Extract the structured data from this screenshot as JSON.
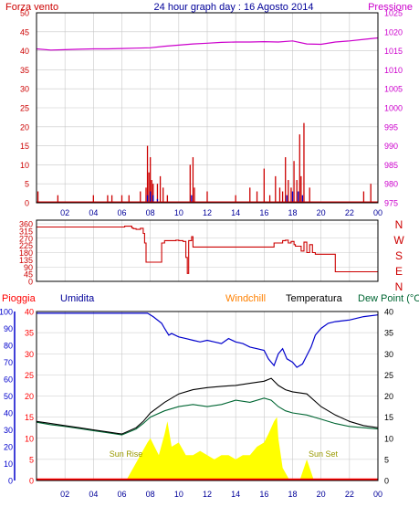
{
  "title": "24 hour graph day : 16 Agosto 2014",
  "colors": {
    "wind": "#cc0000",
    "gust": "#cc0000",
    "pressure": "#cc00cc",
    "humidity": "#0000cc",
    "rain": "#ff0000",
    "windchill": "#ff8000",
    "temperature": "#000000",
    "dewpoint": "#006633",
    "solar": "#ffff00",
    "direction": "#cc0000",
    "grid": "#c8c8c8",
    "border": "#000000"
  },
  "chart_data": [
    {
      "type": "line",
      "title": "24 hour graph day : 16 Agosto 2014",
      "left_label": "Forza vento",
      "right_label": "Pressione",
      "x_ticks": [
        "02",
        "04",
        "06",
        "08",
        "10",
        "12",
        "14",
        "16",
        "18",
        "20",
        "22",
        "00"
      ],
      "xlim": [
        0,
        24
      ],
      "left_ticks": [
        "50",
        "45",
        "40",
        "35",
        "30",
        "25",
        "20",
        "15",
        "10",
        "5",
        "0"
      ],
      "right_ticks": [
        "1025",
        "1020",
        "1015",
        "1010",
        "1005",
        "1000",
        "995",
        "990",
        "985",
        "980",
        "975"
      ],
      "ylim_left": [
        0,
        50
      ],
      "ylim_right": [
        975,
        1025
      ],
      "series": [
        {
          "kind": "pressure",
          "axis": "right",
          "x": [
            0,
            1,
            2,
            3,
            4,
            5,
            6,
            7,
            8,
            9,
            10,
            11,
            12,
            13,
            14,
            15,
            16,
            17,
            18,
            19,
            20,
            21,
            22,
            23,
            24
          ],
          "y": [
            1015.5,
            1015.2,
            1015.3,
            1015.4,
            1015.5,
            1015.5,
            1015.6,
            1015.7,
            1015.8,
            1016.2,
            1016.5,
            1016.8,
            1017.0,
            1017.2,
            1017.3,
            1017.3,
            1017.4,
            1017.3,
            1017.6,
            1016.8,
            1016.7,
            1017.3,
            1017.6,
            1018.0,
            1018.4
          ]
        },
        {
          "kind": "gust",
          "axis": "left",
          "x": [
            0.1,
            1.5,
            4.0,
            5.0,
            5.3,
            6.0,
            6.5,
            7.3,
            7.7,
            7.8,
            7.9,
            8.0,
            8.1,
            8.2,
            8.5,
            8.7,
            8.9,
            9.2,
            10.8,
            11.0,
            11.1,
            12.0,
            14.0,
            15.0,
            15.5,
            16.0,
            16.4,
            16.8,
            17.1,
            17.3,
            17.5,
            17.7,
            17.9,
            18.1,
            18.3,
            18.5,
            18.6,
            18.8,
            19.2,
            23.0,
            23.5
          ],
          "y": [
            3,
            2,
            2,
            2,
            2,
            2,
            2,
            3,
            4,
            15,
            8,
            12,
            6,
            5,
            5,
            7,
            4,
            2,
            10,
            12,
            4,
            3,
            2,
            4,
            3,
            9,
            2,
            7,
            4,
            3,
            12,
            6,
            4,
            11,
            6,
            18,
            7,
            21,
            4,
            3,
            5
          ]
        },
        {
          "kind": "wind",
          "axis": "left",
          "x": [
            7.8,
            8.0,
            8.2,
            8.5,
            10.9,
            17.6,
            18.0,
            18.4,
            18.7
          ],
          "y": [
            2,
            3,
            2,
            1,
            2,
            2,
            3,
            3,
            2
          ]
        }
      ]
    },
    {
      "type": "line",
      "left_label": "",
      "right_labels": [
        "N",
        "W",
        "S",
        "E",
        "N"
      ],
      "left_ticks": [
        "360",
        "315",
        "270",
        "225",
        "180",
        "135",
        "90",
        "45",
        "0"
      ],
      "ylim": [
        0,
        360
      ],
      "x_ticks": [],
      "xlim": [
        0,
        24
      ],
      "series": [
        {
          "kind": "direction",
          "x": [
            0,
            6.0,
            6.2,
            6.3,
            6.7,
            6.8,
            7.0,
            7.3,
            7.5,
            7.6,
            7.7,
            8.7,
            8.8,
            9.0,
            9.8,
            10.0,
            10.3,
            10.5,
            10.6,
            10.7,
            10.9,
            11.0,
            16.6,
            16.7,
            17.3,
            17.5,
            17.7,
            17.9,
            18.1,
            18.2,
            18.5,
            18.6,
            18.8,
            19.0,
            19.2,
            19.4,
            19.6,
            20.0,
            20.8,
            21.0,
            23.5,
            24.0
          ],
          "y": [
            340,
            340,
            345,
            345,
            335,
            330,
            325,
            332,
            300,
            240,
            120,
            120,
            240,
            255,
            258,
            255,
            250,
            150,
            50,
            255,
            280,
            215,
            215,
            240,
            255,
            258,
            240,
            250,
            230,
            220,
            220,
            190,
            245,
            180,
            230,
            180,
            170,
            170,
            170,
            60,
            60,
            60
          ]
        }
      ]
    },
    {
      "type": "line",
      "labels": [
        "Pioggia",
        "Umidita",
        "Windchill",
        "Temperatura",
        "Dew Point (°C"
      ],
      "left_ticks_rain": [
        "40",
        "35",
        "30",
        "25",
        "20",
        "15",
        "10",
        "5",
        "0"
      ],
      "left_ticks_humidity": [
        "100",
        "90",
        "80",
        "70",
        "60",
        "50",
        "40",
        "30",
        "20",
        "10",
        "0"
      ],
      "right_ticks": [
        "40",
        "35",
        "30",
        "25",
        "20",
        "15",
        "10",
        "5",
        "0"
      ],
      "x_ticks": [
        "02",
        "04",
        "06",
        "08",
        "10",
        "12",
        "14",
        "16",
        "18",
        "20",
        "22",
        "00"
      ],
      "xlim": [
        0,
        24
      ],
      "ylim_temp": [
        0,
        40
      ],
      "ylim_humidity": [
        0,
        100
      ],
      "annotations": [
        "Sun Rise",
        "Sun Set"
      ],
      "series": [
        {
          "name": "Umidita",
          "kind": "humidity",
          "x": [
            0,
            2,
            4,
            6,
            7.8,
            8.2,
            8.8,
            9.0,
            9.3,
            9.5,
            10,
            10.5,
            11,
            11.5,
            12,
            12.5,
            13,
            13.5,
            14,
            14.5,
            15,
            15.5,
            16,
            16.3,
            16.7,
            17.0,
            17.3,
            17.6,
            18.0,
            18.3,
            18.7,
            19.0,
            19.3,
            19.6,
            20.0,
            20.5,
            21,
            22,
            23,
            24
          ],
          "y": [
            99,
            99,
            99,
            99,
            99,
            97,
            93,
            90,
            86,
            87,
            85,
            84,
            83,
            82,
            83,
            82,
            81,
            84,
            82,
            81,
            79,
            78,
            77,
            72,
            68,
            75,
            78,
            72,
            70,
            67,
            69,
            74,
            79,
            86,
            90,
            93,
            94,
            95,
            97,
            98
          ]
        },
        {
          "name": "Temperatura",
          "kind": "temperature",
          "x": [
            0,
            1,
            2,
            3,
            4,
            5,
            6,
            7,
            7.5,
            8,
            9,
            10,
            11,
            12,
            13,
            14,
            15,
            16,
            16.5,
            17,
            17.5,
            18,
            19,
            20,
            21,
            22,
            23,
            24
          ],
          "y": [
            14,
            13.5,
            13,
            12.5,
            12,
            11.5,
            11,
            12.5,
            14,
            16,
            18.5,
            20.5,
            21.5,
            22,
            22.3,
            22.5,
            23,
            23.5,
            24.2,
            22.5,
            21.5,
            21,
            20.5,
            17.5,
            15.5,
            14,
            13,
            12.5
          ]
        },
        {
          "name": "Dew Point",
          "kind": "dewpoint",
          "x": [
            0,
            1,
            2,
            3,
            4,
            5,
            6,
            7,
            7.5,
            8,
            9,
            10,
            11,
            12,
            13,
            14,
            15,
            16,
            16.5,
            17,
            17.5,
            18,
            19,
            20,
            21,
            22,
            23,
            24
          ],
          "y": [
            13.8,
            13.2,
            12.8,
            12.3,
            11.8,
            11.3,
            10.8,
            12.2,
            13.5,
            15,
            16.5,
            17.5,
            18,
            17.5,
            18,
            19,
            18.5,
            19.5,
            19,
            17.5,
            16.5,
            16,
            15.5,
            14.5,
            13.5,
            12.8,
            12.5,
            12.2
          ]
        },
        {
          "name": "Solar",
          "kind": "solar",
          "x": [
            6.3,
            6.8,
            7.3,
            7.8,
            8.0,
            8.3,
            8.6,
            9.0,
            9.2,
            9.5,
            10.0,
            10.5,
            11.0,
            11.5,
            12.0,
            12.5,
            13.0,
            13.5,
            14.0,
            14.5,
            15.0,
            15.5,
            16.0,
            16.3,
            16.7,
            16.9,
            17.0,
            17.3,
            17.8,
            18.5,
            18.7,
            19.0,
            19.3,
            19.5
          ],
          "y": [
            0,
            3,
            6,
            9,
            10,
            8,
            6,
            11,
            14,
            8,
            9,
            6,
            6,
            7,
            6,
            5,
            6,
            6,
            5,
            6,
            6,
            8,
            9,
            11,
            14,
            15,
            10,
            3,
            0,
            0,
            2,
            5,
            2,
            0
          ]
        },
        {
          "name": "Pioggia",
          "kind": "rain",
          "x": [
            0,
            24
          ],
          "y": [
            0,
            0
          ]
        }
      ]
    }
  ]
}
